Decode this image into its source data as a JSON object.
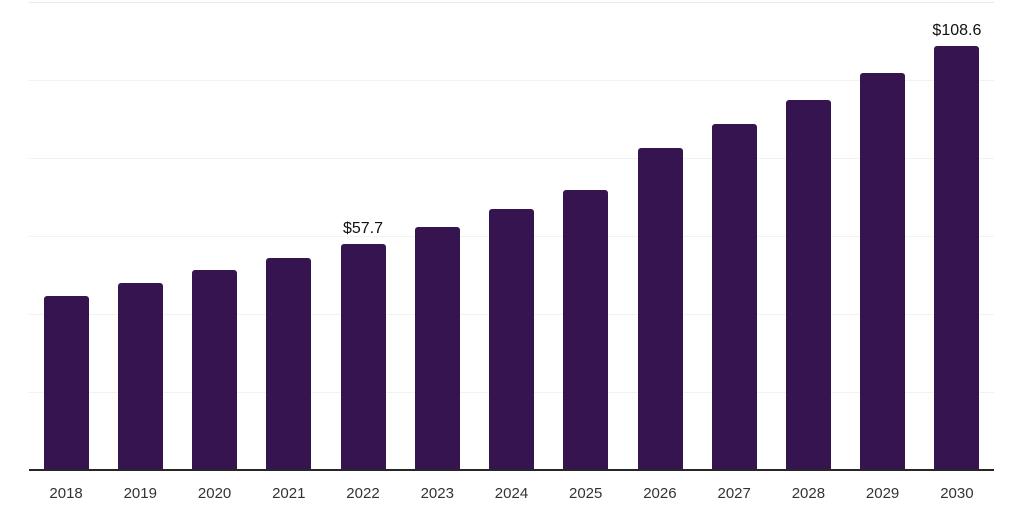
{
  "page": {
    "background": "#ffffff"
  },
  "chart_data": {
    "type": "bar",
    "title": "",
    "xlabel": "",
    "ylabel": "",
    "categories": [
      "2018",
      "2019",
      "2020",
      "2021",
      "2022",
      "2023",
      "2024",
      "2025",
      "2026",
      "2027",
      "2028",
      "2029",
      "2030"
    ],
    "values": [
      44.4,
      47.7,
      51.0,
      54.1,
      57.7,
      62.1,
      66.8,
      71.5,
      82.3,
      88.5,
      94.6,
      101.5,
      108.6
    ],
    "data_labels": [
      {
        "index": 4,
        "text": "$57.7"
      },
      {
        "index": 12,
        "text": "$108.6"
      }
    ],
    "ylim": [
      0,
      120
    ],
    "gridline_values": [
      20,
      40,
      60,
      80,
      100,
      120
    ],
    "grid": "horizontal",
    "legend": "none",
    "y_axis_tick_labels_visible": false,
    "colors": {
      "bar": "#361450",
      "gridline": "#f2f2f2",
      "top_gridline": "#e9e9e9",
      "axis_line": "#262626",
      "x_tick_label": "#333333",
      "data_label": "#111111"
    }
  }
}
